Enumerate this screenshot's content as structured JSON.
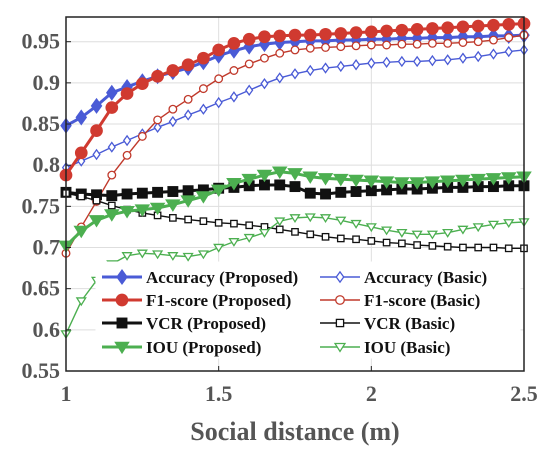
{
  "chart_data": {
    "type": "line",
    "title": "",
    "xlabel": "Social distance (m)",
    "ylabel": "",
    "xlim": [
      1,
      2.5
    ],
    "ylim": [
      0.55,
      0.98
    ],
    "xticks": [
      1,
      1.5,
      2,
      2.5
    ],
    "xtick_labels": [
      "1",
      "1.5",
      "2",
      "2.5"
    ],
    "yticks": [
      0.55,
      0.6,
      0.65,
      0.7,
      0.75,
      0.8,
      0.85,
      0.9,
      0.95
    ],
    "ytick_labels": [
      "0.55",
      "0.6",
      "0.65",
      "0.7",
      "0.75",
      "0.8",
      "0.85",
      "0.9",
      "0.95"
    ],
    "grid": true,
    "legend_position": "lower-center",
    "x": [
      1.0,
      1.05,
      1.1,
      1.15,
      1.2,
      1.25,
      1.3,
      1.35,
      1.4,
      1.45,
      1.5,
      1.55,
      1.6,
      1.65,
      1.7,
      1.75,
      1.8,
      1.85,
      1.9,
      1.95,
      2.0,
      2.05,
      2.1,
      2.15,
      2.2,
      2.25,
      2.3,
      2.35,
      2.4,
      2.45,
      2.5
    ],
    "series": [
      {
        "name": "Accuracy (Proposed)",
        "color": "#4a5bd6",
        "marker": "diamond-filled",
        "values": [
          0.848,
          0.858,
          0.872,
          0.888,
          0.895,
          0.902,
          0.908,
          0.913,
          0.918,
          0.925,
          0.933,
          0.939,
          0.944,
          0.947,
          0.949,
          0.95,
          0.951,
          0.951,
          0.952,
          0.952,
          0.953,
          0.953,
          0.954,
          0.954,
          0.955,
          0.955,
          0.956,
          0.956,
          0.957,
          0.957,
          0.958
        ]
      },
      {
        "name": "Accuracy (Basic)",
        "color": "#4a5bd6",
        "marker": "diamond-open",
        "values": [
          0.797,
          0.805,
          0.813,
          0.822,
          0.83,
          0.838,
          0.846,
          0.853,
          0.861,
          0.868,
          0.876,
          0.883,
          0.891,
          0.899,
          0.906,
          0.911,
          0.915,
          0.918,
          0.92,
          0.922,
          0.924,
          0.925,
          0.926,
          0.926,
          0.927,
          0.928,
          0.93,
          0.932,
          0.935,
          0.938,
          0.94
        ]
      },
      {
        "name": "F1-score (Proposed)",
        "color": "#d03a30",
        "marker": "circle-filled",
        "values": [
          0.788,
          0.815,
          0.842,
          0.87,
          0.887,
          0.899,
          0.908,
          0.915,
          0.922,
          0.93,
          0.94,
          0.948,
          0.953,
          0.956,
          0.957,
          0.958,
          0.958,
          0.959,
          0.96,
          0.961,
          0.962,
          0.963,
          0.964,
          0.965,
          0.966,
          0.967,
          0.968,
          0.969,
          0.97,
          0.971,
          0.972
        ]
      },
      {
        "name": "F1-score (Basic)",
        "color": "#c0392b",
        "marker": "circle-open",
        "values": [
          0.693,
          0.725,
          0.756,
          0.788,
          0.812,
          0.835,
          0.855,
          0.868,
          0.88,
          0.893,
          0.905,
          0.915,
          0.923,
          0.93,
          0.936,
          0.94,
          0.942,
          0.943,
          0.944,
          0.945,
          0.946,
          0.946,
          0.947,
          0.947,
          0.948,
          0.948,
          0.949,
          0.95,
          0.952,
          0.955,
          0.958
        ]
      },
      {
        "name": "VCR (Proposed)",
        "color": "#111111",
        "marker": "square-filled",
        "values": [
          0.767,
          0.765,
          0.764,
          0.763,
          0.765,
          0.766,
          0.767,
          0.768,
          0.769,
          0.77,
          0.772,
          0.773,
          0.775,
          0.776,
          0.776,
          0.774,
          0.766,
          0.765,
          0.767,
          0.768,
          0.769,
          0.77,
          0.771,
          0.771,
          0.772,
          0.773,
          0.773,
          0.774,
          0.774,
          0.775,
          0.775
        ]
      },
      {
        "name": "VCR (Basic)",
        "color": "#111111",
        "marker": "square-open",
        "values": [
          0.766,
          0.762,
          0.757,
          0.751,
          0.746,
          0.742,
          0.739,
          0.736,
          0.734,
          0.732,
          0.73,
          0.729,
          0.727,
          0.725,
          0.722,
          0.719,
          0.716,
          0.713,
          0.711,
          0.71,
          0.708,
          0.706,
          0.705,
          0.703,
          0.702,
          0.701,
          0.7,
          0.7,
          0.7,
          0.699,
          0.699
        ]
      },
      {
        "name": "IOU (Proposed)",
        "color": "#4caf50",
        "marker": "triangle-down-filled",
        "values": [
          0.702,
          0.72,
          0.733,
          0.74,
          0.744,
          0.746,
          0.748,
          0.752,
          0.757,
          0.762,
          0.77,
          0.778,
          0.783,
          0.788,
          0.792,
          0.79,
          0.786,
          0.784,
          0.783,
          0.782,
          0.781,
          0.78,
          0.779,
          0.779,
          0.78,
          0.781,
          0.782,
          0.783,
          0.784,
          0.785,
          0.786
        ]
      },
      {
        "name": "IOU (Basic)",
        "color": "#4caf50",
        "marker": "triangle-down-open",
        "values": [
          0.595,
          0.635,
          0.66,
          0.68,
          0.69,
          0.693,
          0.692,
          0.69,
          0.689,
          0.692,
          0.7,
          0.707,
          0.712,
          0.718,
          0.732,
          0.736,
          0.737,
          0.736,
          0.733,
          0.729,
          0.725,
          0.721,
          0.718,
          0.716,
          0.716,
          0.718,
          0.722,
          0.725,
          0.728,
          0.73,
          0.731
        ]
      }
    ]
  }
}
